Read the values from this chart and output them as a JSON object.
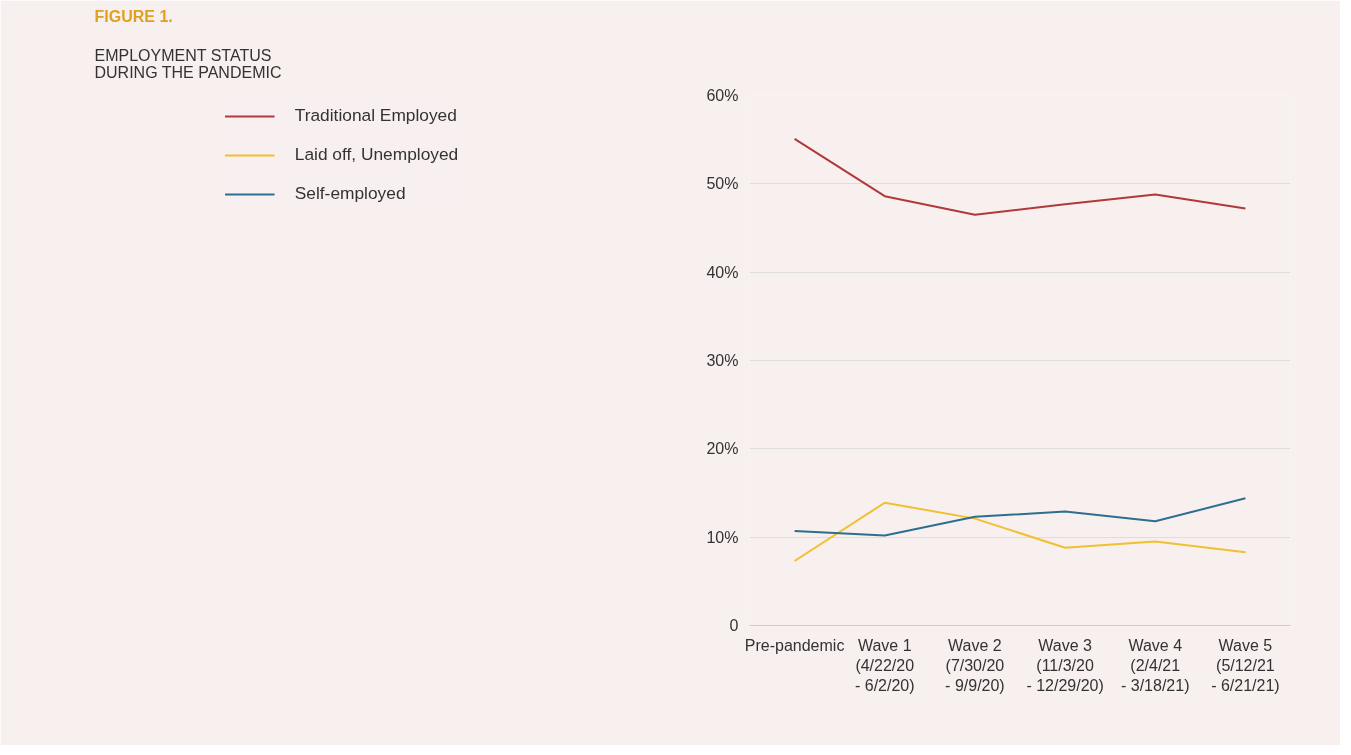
{
  "chart_data": {
    "type": "line",
    "title": "FIGURE 1.",
    "subtitle": "EMPLOYMENT STATUS\nDURING THE PANDEMIC",
    "categories": [
      "Pre-pandemic",
      "Wave 1\n(4/22/20\n- 6/2/20)",
      "Wave 2\n(7/30/20\n- 9/9/20)",
      "Wave 3\n(11/3/20\n- 12/29/20)",
      "Wave 4\n(2/4/21\n- 3/18/21)",
      "Wave 5\n(5/12/21\n- 6/21/21)"
    ],
    "series": [
      {
        "name": "Traditional Employed",
        "color": "#b03a3a",
        "values": [
          55.1,
          48.6,
          46.5,
          47.7,
          48.8,
          47.2
        ]
      },
      {
        "name": "Laid off, Unemployed",
        "color": "#f0c030",
        "values": [
          7.3,
          13.9,
          12.1,
          8.8,
          9.5,
          8.3
        ]
      },
      {
        "name": "Self-employed",
        "color": "#2e6e8e",
        "values": [
          10.7,
          10.2,
          12.3,
          12.9,
          11.8,
          14.4
        ]
      }
    ],
    "ylim": [
      0,
      60
    ],
    "yticks": [
      0,
      {
        "value": 10,
        "label": "10%"
      },
      {
        "value": 20,
        "label": "20%"
      },
      {
        "value": 30,
        "label": "30%"
      },
      {
        "value": 40,
        "label": "40%"
      },
      {
        "value": 50,
        "label": "50%"
      },
      {
        "value": 60,
        "label": "60%"
      }
    ],
    "grid": "y",
    "legend": "left",
    "marker": "none",
    "line_style": "solid"
  }
}
